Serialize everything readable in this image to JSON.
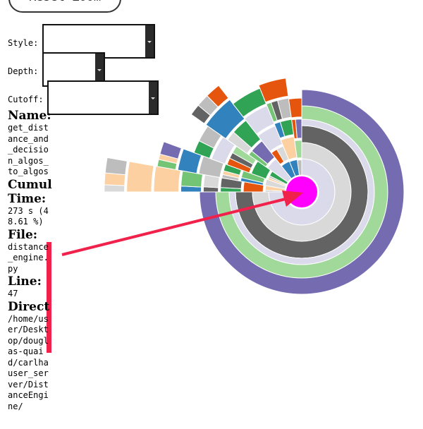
{
  "controls": {
    "reset_label": "Reset Zoom",
    "style_label": "Style:",
    "depth_label": "Depth:",
    "cutoff_label": "Cutoff:"
  },
  "info": {
    "name_heading": "Name:",
    "name_value": "get_distance_and_decision_algos_to_algos",
    "time_heading_1": "Cumul",
    "time_heading_2": "Time:",
    "time_value": "273 s (48.61 %)",
    "file_heading": "File:",
    "file_value": "distance_engine.py",
    "line_heading": "Line:",
    "line_value": "47",
    "dir_heading": "Direct",
    "dir_value": "/home/user/Desktop/douglas-quaid/carlhauser_server/DistanceEngine/"
  },
  "colors": {
    "center": "#ff00ff",
    "arrow": "#f0214a",
    "purple": "#756bb1",
    "light_green": "#a1d99b",
    "dark_gray": "#636363",
    "lavender": "#dadaeb",
    "light_gray": "#d9d9d9",
    "gray": "#bdbdbd",
    "blue": "#3182bd",
    "peach": "#fdd0a2",
    "orange": "#e6550d",
    "green": "#31a354",
    "pale_green": "#74c476"
  }
}
